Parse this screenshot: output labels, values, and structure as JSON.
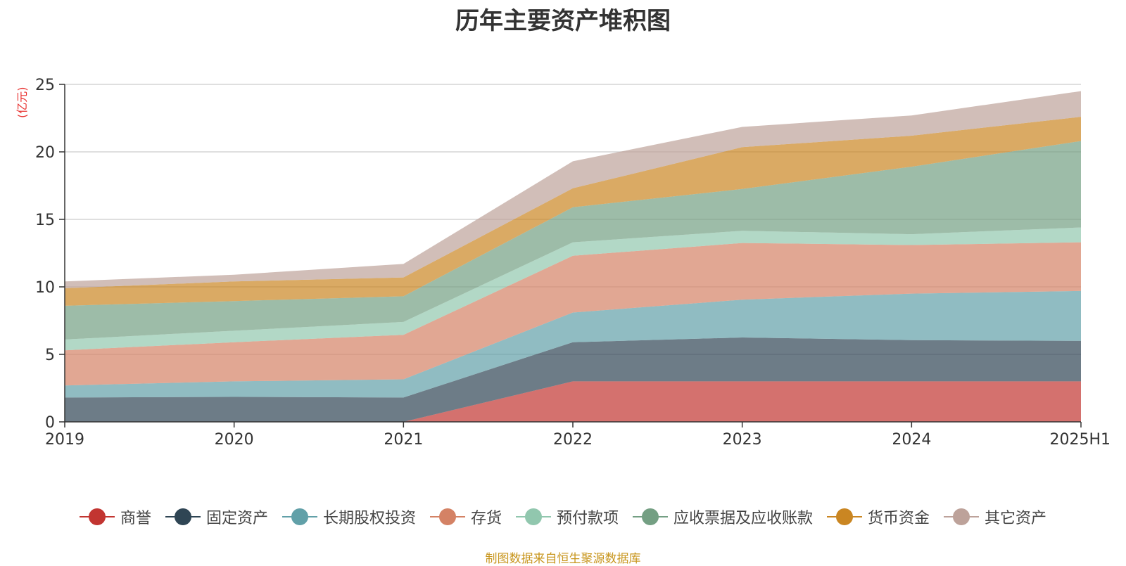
{
  "chart_data": {
    "type": "area",
    "stacked": true,
    "title": "历年主要资产堆积图",
    "ylabel": "(亿元)",
    "xlabel": "",
    "categories": [
      "2019",
      "2020",
      "2021",
      "2022",
      "2023",
      "2024",
      "2025H1"
    ],
    "ylim": [
      0,
      25
    ],
    "yticks": [
      0,
      5,
      10,
      15,
      20,
      25
    ],
    "grid": true,
    "legend_position": "bottom",
    "series": [
      {
        "name": "商誉",
        "color": "#c23531",
        "values": [
          0,
          0,
          0,
          3.0,
          3.0,
          3.0,
          3.0
        ]
      },
      {
        "name": "固定资产",
        "color": "#2f4554",
        "values": [
          1.8,
          1.85,
          1.8,
          2.9,
          3.25,
          3.05,
          3.0
        ]
      },
      {
        "name": "长期股权投资",
        "color": "#61a0a8",
        "values": [
          0.9,
          1.15,
          1.35,
          2.2,
          2.8,
          3.45,
          3.7
        ]
      },
      {
        "name": "存货",
        "color": "#d48265",
        "values": [
          2.6,
          2.9,
          3.3,
          4.2,
          4.2,
          3.6,
          3.6
        ]
      },
      {
        "name": "预付款项",
        "color": "#91c7ae",
        "values": [
          0.8,
          0.85,
          0.95,
          1.0,
          0.9,
          0.8,
          1.1
        ]
      },
      {
        "name": "应收票据及应收账款",
        "color": "#749f83",
        "values": [
          2.5,
          2.2,
          1.9,
          2.6,
          3.1,
          5.0,
          6.4
        ]
      },
      {
        "name": "货币资金",
        "color": "#ca8622",
        "values": [
          1.3,
          1.45,
          1.4,
          1.4,
          3.1,
          2.3,
          1.8
        ]
      },
      {
        "name": "其它资产",
        "color": "#bda29a",
        "values": [
          0.5,
          0.5,
          1.0,
          2.0,
          1.5,
          1.5,
          1.9
        ]
      }
    ]
  },
  "footer": {
    "source": "制图数据来自恒生聚源数据库"
  }
}
